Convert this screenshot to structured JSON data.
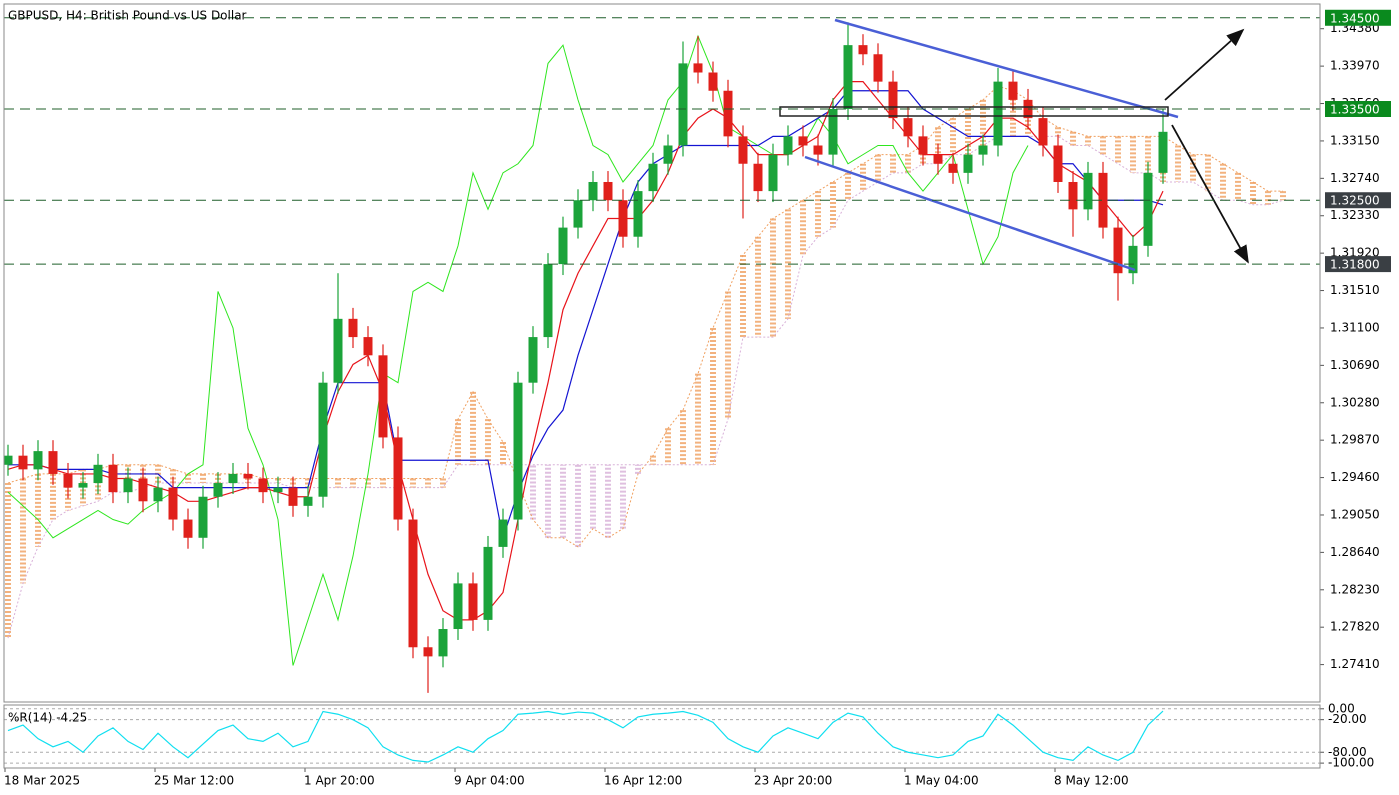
{
  "chart_data": {
    "type": "candlestick",
    "title": "GBPUSD, H4:  British Pound vs US Dollar",
    "categories": [
      "18 Mar 2025",
      null,
      null,
      null,
      null,
      null,
      null,
      null,
      null,
      null,
      "25 Mar 12:00",
      null,
      null,
      null,
      null,
      null,
      null,
      null,
      null,
      null,
      "1 Apr 20:00",
      null,
      null,
      null,
      null,
      null,
      null,
      null,
      null,
      null,
      "9 Apr 04:00",
      null,
      null,
      null,
      null,
      null,
      null,
      null,
      null,
      null,
      "16 Apr 12:00",
      null,
      null,
      null,
      null,
      null,
      null,
      null,
      null,
      null,
      "23 Apr 20:00",
      null,
      null,
      null,
      null,
      null,
      null,
      null,
      null,
      null,
      "1 May 04:00",
      null,
      null,
      null,
      null,
      null,
      null,
      null,
      null,
      null,
      "8 May 12:00",
      null,
      null,
      null,
      null,
      null,
      null,
      null,
      null,
      null,
      null,
      null,
      null,
      null,
      null,
      null
    ],
    "open": [
      1.296,
      1.297,
      1.2955,
      1.2975,
      1.295,
      1.2935,
      1.294,
      1.296,
      1.293,
      1.2945,
      1.292,
      1.2935,
      1.29,
      1.288,
      1.2925,
      1.294,
      1.295,
      1.2945,
      1.293,
      1.2935,
      1.2915,
      1.2925,
      1.305,
      1.312,
      1.31,
      1.308,
      1.299,
      1.29,
      1.276,
      1.275,
      1.278,
      1.283,
      1.279,
      1.287,
      1.29,
      1.305,
      1.31,
      1.318,
      1.322,
      1.325,
      1.327,
      1.325,
      1.321,
      1.326,
      1.329,
      1.331,
      1.34,
      1.339,
      1.337,
      1.332,
      1.329,
      1.326,
      1.33,
      1.332,
      1.331,
      1.33,
      1.335,
      1.342,
      1.341,
      1.338,
      1.334,
      1.332,
      1.33,
      1.329,
      1.328,
      1.33,
      1.331,
      1.338,
      1.336,
      1.334,
      1.331,
      1.327,
      1.324,
      1.328,
      1.322,
      1.317,
      1.32,
      1.328,
      null,
      null,
      null,
      null,
      null,
      null,
      null,
      null
    ],
    "high": [
      1.2982,
      1.2982,
      1.2987,
      1.2987,
      1.2962,
      1.2952,
      1.2972,
      1.2972,
      1.2957,
      1.2957,
      1.2947,
      1.2947,
      1.2912,
      1.2937,
      1.2952,
      1.2962,
      1.2962,
      1.2957,
      1.2947,
      1.2947,
      1.2937,
      1.3062,
      1.317,
      1.3132,
      1.3112,
      1.3092,
      1.3002,
      1.2912,
      1.2772,
      1.2792,
      1.2842,
      1.2842,
      1.2882,
      1.2912,
      1.3062,
      1.3112,
      1.3192,
      1.3232,
      1.3262,
      1.3282,
      1.3282,
      1.3262,
      1.3272,
      1.3302,
      1.3322,
      1.3424,
      1.343,
      1.3402,
      1.3382,
      1.3332,
      1.3302,
      1.3312,
      1.3332,
      1.3332,
      1.3322,
      1.3362,
      1.3445,
      1.3432,
      1.3422,
      1.3392,
      1.3352,
      1.3332,
      1.3312,
      1.3302,
      1.3312,
      1.3322,
      1.3395,
      1.3392,
      1.3372,
      1.3352,
      1.3322,
      1.3282,
      1.3292,
      1.3292,
      1.3232,
      1.3212,
      1.3292,
      1.335,
      null,
      null,
      null,
      null,
      null,
      null,
      null,
      null
    ],
    "low": [
      1.2948,
      1.2943,
      1.2943,
      1.2938,
      1.2923,
      1.2923,
      1.2928,
      1.2918,
      1.2918,
      1.2908,
      1.2908,
      1.2888,
      1.2868,
      1.2868,
      1.2913,
      1.2928,
      1.2933,
      1.2918,
      1.2918,
      1.2903,
      1.2903,
      1.2913,
      1.3038,
      1.3088,
      1.3068,
      1.2978,
      1.2888,
      1.2748,
      1.271,
      1.2738,
      1.2768,
      1.2778,
      1.2778,
      1.2858,
      1.2888,
      1.3038,
      1.3088,
      1.3168,
      1.3208,
      1.3238,
      1.3238,
      1.3198,
      1.3198,
      1.3248,
      1.3278,
      1.3298,
      1.3378,
      1.3358,
      1.3308,
      1.323,
      1.3248,
      1.3248,
      1.3288,
      1.3298,
      1.3288,
      1.3288,
      1.3338,
      1.3398,
      1.3368,
      1.3328,
      1.3308,
      1.3288,
      1.3278,
      1.3268,
      1.3268,
      1.3288,
      1.3298,
      1.3348,
      1.3328,
      1.3298,
      1.3258,
      1.321,
      1.3228,
      1.3208,
      1.314,
      1.3158,
      1.3188,
      1.3268,
      null,
      null,
      null,
      null,
      null,
      null,
      null,
      null
    ],
    "close": [
      1.297,
      1.2955,
      1.2975,
      1.295,
      1.2935,
      1.294,
      1.296,
      1.293,
      1.2945,
      1.292,
      1.2935,
      1.29,
      1.288,
      1.2925,
      1.294,
      1.295,
      1.2945,
      1.293,
      1.2935,
      1.2915,
      1.2925,
      1.305,
      1.312,
      1.31,
      1.308,
      1.299,
      1.29,
      1.276,
      1.275,
      1.278,
      1.283,
      1.279,
      1.287,
      1.29,
      1.305,
      1.31,
      1.318,
      1.322,
      1.325,
      1.327,
      1.325,
      1.321,
      1.326,
      1.329,
      1.331,
      1.34,
      1.339,
      1.337,
      1.332,
      1.329,
      1.326,
      1.33,
      1.332,
      1.331,
      1.33,
      1.335,
      1.342,
      1.341,
      1.338,
      1.334,
      1.332,
      1.33,
      1.329,
      1.328,
      1.33,
      1.331,
      1.338,
      1.336,
      1.334,
      1.331,
      1.327,
      1.324,
      1.328,
      1.322,
      1.317,
      1.32,
      1.328,
      1.3325,
      null,
      null,
      null,
      null,
      null,
      null,
      null,
      null
    ],
    "up_color": "#1ba33a",
    "down_color": "#e0201b",
    "ylim": [
      1.27,
      1.3464
    ],
    "yticks": [
      {
        "value": 1.3438,
        "label": "1.34380"
      },
      {
        "value": 1.3397,
        "label": "1.33970"
      },
      {
        "value": 1.3356,
        "label": "1.33560"
      },
      {
        "value": 1.3315,
        "label": "1.33150"
      },
      {
        "value": 1.3274,
        "label": "1.32740"
      },
      {
        "value": 1.3233,
        "label": "1.32330"
      },
      {
        "value": 1.3192,
        "label": "1.31920"
      },
      {
        "value": 1.3151,
        "label": "1.31510"
      },
      {
        "value": 1.311,
        "label": "1.31100"
      },
      {
        "value": 1.3069,
        "label": "1.30690"
      },
      {
        "value": 1.3028,
        "label": "1.30280"
      },
      {
        "value": 1.2987,
        "label": "1.29870"
      },
      {
        "value": 1.2946,
        "label": "1.29460"
      },
      {
        "value": 1.2905,
        "label": "1.29050"
      },
      {
        "value": 1.2864,
        "label": "1.28640"
      },
      {
        "value": 1.2823,
        "label": "1.28230"
      },
      {
        "value": 1.2782,
        "label": "1.27820"
      },
      {
        "value": 1.2741,
        "label": "1.27410"
      }
    ],
    "grid": false,
    "levels": [
      {
        "value": 1.345,
        "label": "1.34500",
        "color": "#0a8a1e"
      },
      {
        "value": 1.335,
        "label": "1.33500",
        "color": "#0a8a1e"
      },
      {
        "value": 1.325,
        "label": "1.32500",
        "color": "#3a3f44"
      },
      {
        "value": 1.318,
        "label": "1.31800",
        "color": "#3a3f44"
      }
    ],
    "tenkan": {
      "color": "#e8141b",
      "values": [
        1.2955,
        1.296,
        1.296,
        1.2955,
        1.295,
        1.295,
        1.295,
        1.2945,
        1.2945,
        1.294,
        1.2935,
        1.293,
        1.292,
        1.292,
        1.2925,
        1.293,
        1.2935,
        1.2935,
        1.293,
        1.2925,
        1.2925,
        1.299,
        1.304,
        1.307,
        1.308,
        1.304,
        1.296,
        1.29,
        1.284,
        1.28,
        1.279,
        1.279,
        1.28,
        1.282,
        1.29,
        1.298,
        1.305,
        1.313,
        1.317,
        1.32,
        1.323,
        1.323,
        1.323,
        1.325,
        1.328,
        1.332,
        1.334,
        1.335,
        1.334,
        1.332,
        1.33,
        1.33,
        1.33,
        1.331,
        1.332,
        1.336,
        1.338,
        1.338,
        1.336,
        1.334,
        1.332,
        1.33,
        1.33,
        1.33,
        1.331,
        1.332,
        1.334,
        1.334,
        1.333,
        1.331,
        1.329,
        1.328,
        1.327,
        1.325,
        1.323,
        1.321,
        1.3225,
        1.326,
        null,
        null,
        null,
        null,
        null,
        null,
        null,
        null
      ]
    },
    "kijun": {
      "color": "#1414d2",
      "values": [
        1.296,
        1.296,
        1.296,
        1.2955,
        1.2955,
        1.2955,
        1.2955,
        1.295,
        1.295,
        1.295,
        1.295,
        1.2935,
        1.2935,
        1.2935,
        1.2935,
        1.2935,
        1.2935,
        1.2935,
        1.2935,
        1.2935,
        1.2935,
        1.3,
        1.305,
        1.305,
        1.305,
        1.305,
        1.2965,
        1.2965,
        1.2965,
        1.2965,
        1.2965,
        1.2965,
        1.2965,
        1.288,
        1.293,
        1.297,
        1.3,
        1.302,
        1.308,
        1.313,
        1.318,
        1.323,
        1.327,
        1.329,
        1.33,
        1.331,
        1.331,
        1.331,
        1.331,
        1.331,
        1.331,
        1.332,
        1.332,
        1.333,
        1.334,
        1.335,
        1.337,
        1.337,
        1.337,
        1.337,
        1.337,
        1.335,
        1.334,
        1.333,
        1.332,
        1.332,
        1.332,
        1.332,
        1.332,
        1.331,
        1.329,
        1.329,
        1.327,
        1.325,
        1.325,
        1.325,
        1.325,
        1.3245,
        null,
        null,
        null,
        null,
        null,
        null,
        null,
        null
      ]
    },
    "chikou": {
      "color": "#2ee61e",
      "values": [
        1.293,
        1.2915,
        1.29,
        1.288,
        1.289,
        1.29,
        1.291,
        1.29,
        1.2895,
        1.291,
        1.292,
        1.293,
        1.295,
        1.296,
        1.315,
        1.311,
        1.3,
        1.296,
        1.29,
        1.274,
        1.279,
        1.284,
        1.279,
        1.286,
        1.295,
        1.306,
        1.305,
        1.315,
        1.316,
        1.315,
        1.32,
        1.328,
        1.324,
        1.328,
        1.329,
        1.331,
        1.34,
        1.342,
        1.336,
        1.331,
        1.33,
        1.327,
        1.329,
        1.331,
        1.336,
        1.338,
        1.343,
        1.339,
        1.333,
        1.332,
        1.331,
        1.33,
        1.33,
        1.331,
        1.334,
        1.332,
        1.329,
        1.33,
        1.331,
        1.331,
        1.328,
        1.326,
        1.328,
        1.33,
        1.324,
        1.318,
        1.321,
        1.328,
        1.331,
        null,
        null,
        null,
        null,
        null,
        null,
        null,
        null,
        null,
        null,
        null,
        null,
        null,
        null,
        null,
        null,
        null
      ]
    },
    "span_a": {
      "values": [
        1.294,
        1.2945,
        1.295,
        1.295,
        1.295,
        1.2955,
        1.2955,
        1.296,
        1.296,
        1.296,
        1.296,
        1.2955,
        1.295,
        1.295,
        1.295,
        1.295,
        1.295,
        1.2945,
        1.2945,
        1.2945,
        1.2945,
        1.2945,
        1.2945,
        1.2945,
        1.2945,
        1.2945,
        1.2945,
        1.2945,
        1.2945,
        1.2945,
        1.301,
        1.304,
        1.301,
        1.2985,
        1.294,
        1.29,
        1.288,
        1.288,
        1.287,
        1.289,
        1.288,
        1.289,
        1.295,
        1.297,
        1.3,
        1.302,
        1.306,
        1.311,
        1.315,
        1.319,
        1.321,
        1.323,
        1.324,
        1.325,
        1.326,
        1.327,
        1.328,
        1.329,
        1.33,
        1.33,
        1.33,
        1.331,
        1.333,
        1.334,
        1.335,
        1.336,
        1.3375,
        1.337,
        1.336,
        1.334,
        1.333,
        1.3325,
        1.332,
        1.332,
        1.332,
        1.332,
        1.332,
        1.332,
        1.331,
        1.33,
        1.33,
        1.329,
        1.328,
        1.327,
        1.326,
        1.326
      ]
    },
    "span_b": {
      "values": [
        1.277,
        1.283,
        1.287,
        1.29,
        1.291,
        1.2915,
        1.292,
        1.293,
        1.293,
        1.2935,
        1.294,
        1.294,
        1.294,
        1.294,
        1.294,
        1.294,
        1.294,
        1.294,
        1.294,
        1.2935,
        1.2935,
        1.2935,
        1.2935,
        1.2935,
        1.2935,
        1.2935,
        1.2935,
        1.2935,
        1.2935,
        1.2935,
        1.296,
        1.296,
        1.296,
        1.296,
        1.296,
        1.296,
        1.296,
        1.296,
        1.296,
        1.296,
        1.296,
        1.296,
        1.296,
        1.296,
        1.296,
        1.296,
        1.296,
        1.296,
        1.301,
        1.31,
        1.31,
        1.31,
        1.312,
        1.319,
        1.321,
        1.322,
        1.325,
        1.326,
        1.327,
        1.328,
        1.328,
        1.329,
        1.329,
        1.33,
        1.33,
        1.331,
        1.332,
        1.332,
        1.332,
        1.332,
        1.332,
        1.331,
        1.331,
        1.33,
        1.329,
        1.328,
        1.328,
        1.327,
        1.327,
        1.327,
        1.326,
        1.325,
        1.325,
        1.3245,
        1.3245,
        1.325
      ]
    },
    "cloud_up_color": "#f0a060",
    "cloud_down_color": "#d8b0d8",
    "oscillator": {
      "label": "%R(14) -4.25",
      "color": "#10dff0",
      "values": [
        -40,
        -30,
        -55,
        -70,
        -60,
        -80,
        -50,
        -35,
        -60,
        -75,
        -45,
        -70,
        -90,
        -65,
        -40,
        -30,
        -55,
        -60,
        -45,
        -70,
        -60,
        -5,
        -10,
        -20,
        -35,
        -70,
        -85,
        -95,
        -98,
        -85,
        -70,
        -80,
        -55,
        -40,
        -10,
        -8,
        -5,
        -10,
        -6,
        -8,
        -20,
        -35,
        -15,
        -10,
        -8,
        -5,
        -12,
        -25,
        -55,
        -70,
        -80,
        -50,
        -35,
        -45,
        -55,
        -25,
        -8,
        -15,
        -45,
        -70,
        -80,
        -85,
        -90,
        -85,
        -60,
        -50,
        -10,
        -30,
        -55,
        -80,
        -90,
        -95,
        -70,
        -85,
        -95,
        -80,
        -30,
        -4.25,
        null,
        null,
        null,
        null,
        null,
        null,
        null,
        null
      ],
      "ylim": [
        -109,
        7
      ],
      "yticks": [
        {
          "value": 0,
          "label": "0.00"
        },
        {
          "value": -20,
          "label": "-20.00"
        },
        {
          "value": -80,
          "label": "-80.00"
        },
        {
          "value": -100,
          "label": "-100.00"
        }
      ]
    }
  }
}
